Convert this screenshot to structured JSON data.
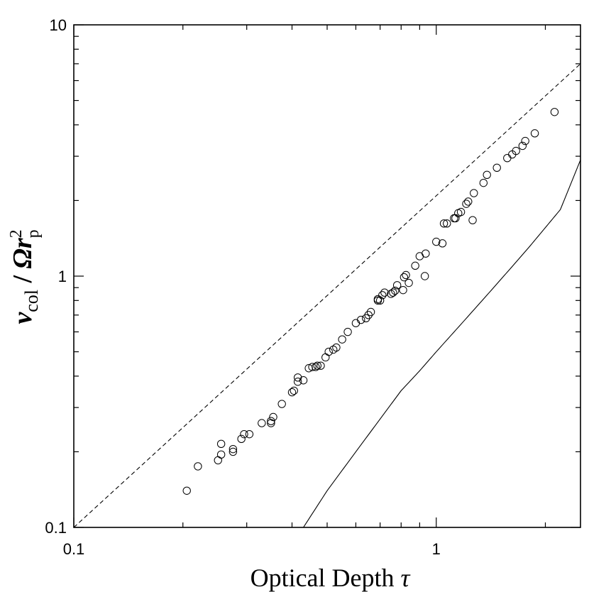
{
  "chart_data": {
    "type": "scatter",
    "title": "",
    "xlabel": "Optical Depth",
    "xlabel_symbol": "τ",
    "ylabel": {
      "nu": "ν",
      "nu_sub": "col",
      "slash": " / ",
      "omega": "Ω",
      "r": "r",
      "r_sup": "2",
      "r_sub": "p"
    },
    "x_scale": "log",
    "y_scale": "log",
    "xlim": [
      0.1,
      2.5
    ],
    "ylim": [
      0.1,
      10
    ],
    "x_tick_labels": [
      {
        "value": 0.1,
        "label": "0.1"
      },
      {
        "value": 1,
        "label": "1"
      }
    ],
    "y_tick_labels": [
      {
        "value": 0.1,
        "label": "0.1"
      },
      {
        "value": 1,
        "label": "1"
      },
      {
        "value": 10,
        "label": "10"
      }
    ],
    "grid": false,
    "legend": "none",
    "series": [
      {
        "kind": "scatter",
        "marker": "open-circle",
        "x": [
          0.205,
          0.22,
          0.25,
          0.255,
          0.255,
          0.275,
          0.275,
          0.29,
          0.295,
          0.305,
          0.33,
          0.35,
          0.35,
          0.355,
          0.375,
          0.4,
          0.405,
          0.415,
          0.415,
          0.43,
          0.445,
          0.455,
          0.465,
          0.47,
          0.48,
          0.495,
          0.505,
          0.52,
          0.53,
          0.55,
          0.57,
          0.6,
          0.62,
          0.64,
          0.65,
          0.66,
          0.69,
          0.69,
          0.7,
          0.71,
          0.72,
          0.75,
          0.76,
          0.77,
          0.78,
          0.81,
          0.815,
          0.825,
          0.84,
          0.875,
          0.9,
          0.93,
          0.935,
          1.0,
          1.04,
          1.05,
          1.07,
          1.12,
          1.13,
          1.15,
          1.17,
          1.21,
          1.225,
          1.26,
          1.27,
          1.35,
          1.38,
          1.47,
          1.57,
          1.62,
          1.66,
          1.73,
          1.76,
          1.87,
          2.12
        ],
        "y": [
          0.14,
          0.175,
          0.185,
          0.195,
          0.215,
          0.2,
          0.205,
          0.225,
          0.235,
          0.235,
          0.26,
          0.26,
          0.265,
          0.275,
          0.31,
          0.345,
          0.35,
          0.38,
          0.395,
          0.385,
          0.43,
          0.435,
          0.435,
          0.44,
          0.44,
          0.475,
          0.5,
          0.51,
          0.52,
          0.56,
          0.6,
          0.65,
          0.67,
          0.68,
          0.7,
          0.72,
          0.8,
          0.81,
          0.8,
          0.84,
          0.86,
          0.85,
          0.86,
          0.875,
          0.92,
          0.88,
          0.99,
          1.01,
          0.94,
          1.1,
          1.2,
          1.0,
          1.23,
          1.37,
          1.35,
          1.62,
          1.62,
          1.7,
          1.7,
          1.78,
          1.8,
          1.94,
          1.98,
          1.67,
          2.14,
          2.35,
          2.53,
          2.7,
          2.95,
          3.05,
          3.15,
          3.3,
          3.45,
          3.7,
          4.5
        ]
      },
      {
        "kind": "fit-line",
        "style": "dashed",
        "x": [
          0.1,
          2.5
        ],
        "y": [
          0.1,
          7.0
        ]
      },
      {
        "kind": "model-curve",
        "style": "solid",
        "x": [
          0.43,
          0.5,
          0.6,
          0.7,
          0.8,
          0.9,
          1.0,
          1.2,
          1.4,
          1.6,
          1.8,
          2.0,
          2.2,
          2.5
        ],
        "y": [
          0.1,
          0.14,
          0.2,
          0.27,
          0.35,
          0.42,
          0.5,
          0.67,
          0.86,
          1.07,
          1.3,
          1.56,
          1.84,
          2.9
        ]
      }
    ]
  }
}
